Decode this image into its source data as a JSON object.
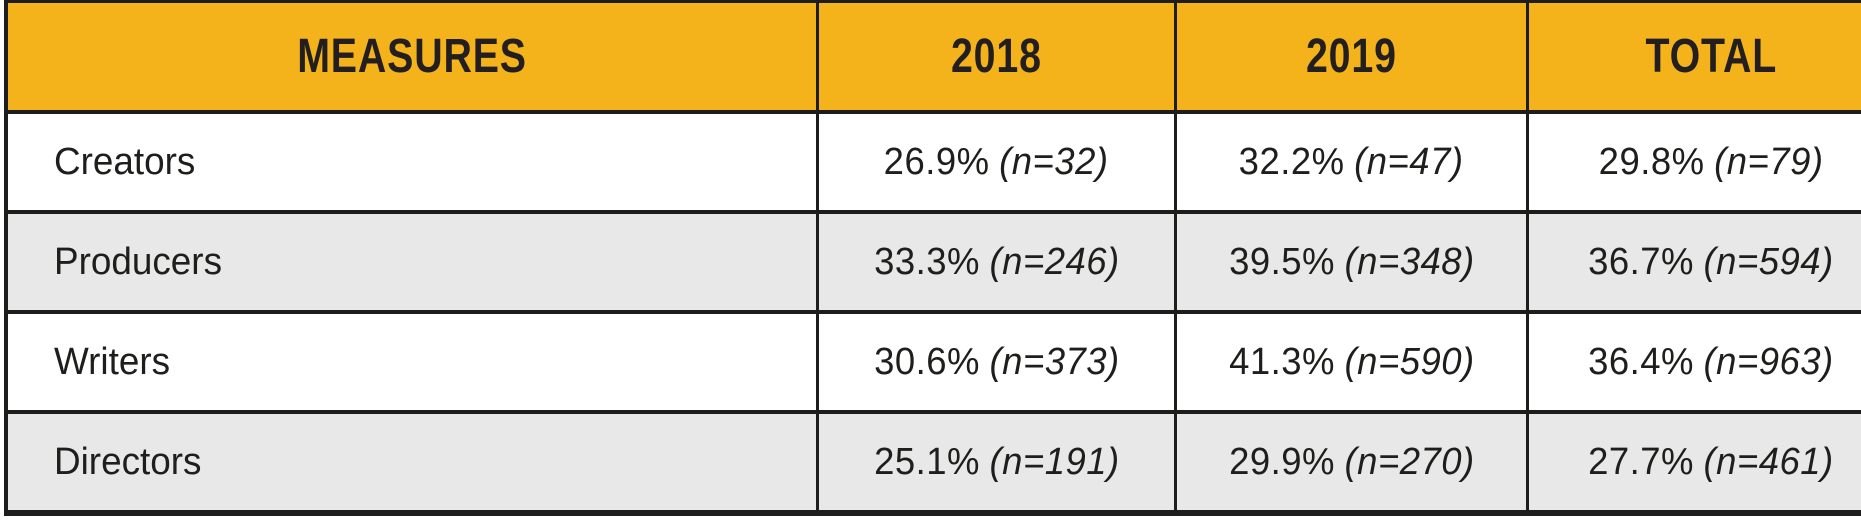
{
  "colors": {
    "header_bg": "#F5B31B",
    "alt_row_bg": "#E8E8E8",
    "border": "#1D1D1B",
    "text": "#1E1E1C"
  },
  "table": {
    "headers": {
      "measures": "MEASURES",
      "y2018": "2018",
      "y2019": "2019",
      "total": "TOTAL"
    },
    "rows": [
      {
        "label": "Creators",
        "values": [
          {
            "pct": "26.9%",
            "n": "(n=32)"
          },
          {
            "pct": "32.2%",
            "n": "(n=47)"
          },
          {
            "pct": "29.8%",
            "n": "(n=79)"
          }
        ]
      },
      {
        "label": "Producers",
        "values": [
          {
            "pct": "33.3%",
            "n": "(n=246)"
          },
          {
            "pct": "39.5%",
            "n": "(n=348)"
          },
          {
            "pct": "36.7%",
            "n": "(n=594)"
          }
        ]
      },
      {
        "label": "Writers",
        "values": [
          {
            "pct": "30.6%",
            "n": "(n=373)"
          },
          {
            "pct": "41.3%",
            "n": "(n=590)"
          },
          {
            "pct": "36.4%",
            "n": "(n=963)"
          }
        ]
      },
      {
        "label": "Directors",
        "values": [
          {
            "pct": "25.1%",
            "n": "(n=191)"
          },
          {
            "pct": "29.9%",
            "n": "(n=270)"
          },
          {
            "pct": "27.7%",
            "n": "(n=461)"
          }
        ]
      }
    ]
  },
  "chart_data": {
    "type": "table",
    "columns": [
      "MEASURES",
      "2018",
      "2019",
      "TOTAL"
    ],
    "rows": [
      [
        "Creators",
        "26.9% (n=32)",
        "32.2% (n=47)",
        "29.8% (n=79)"
      ],
      [
        "Producers",
        "33.3% (n=246)",
        "39.5% (n=348)",
        "36.7% (n=594)"
      ],
      [
        "Writers",
        "30.6% (n=373)",
        "41.3% (n=590)",
        "36.4% (n=963)"
      ],
      [
        "Directors",
        "25.1% (n=191)",
        "29.9% (n=270)",
        "27.7% (n=461)"
      ]
    ]
  }
}
